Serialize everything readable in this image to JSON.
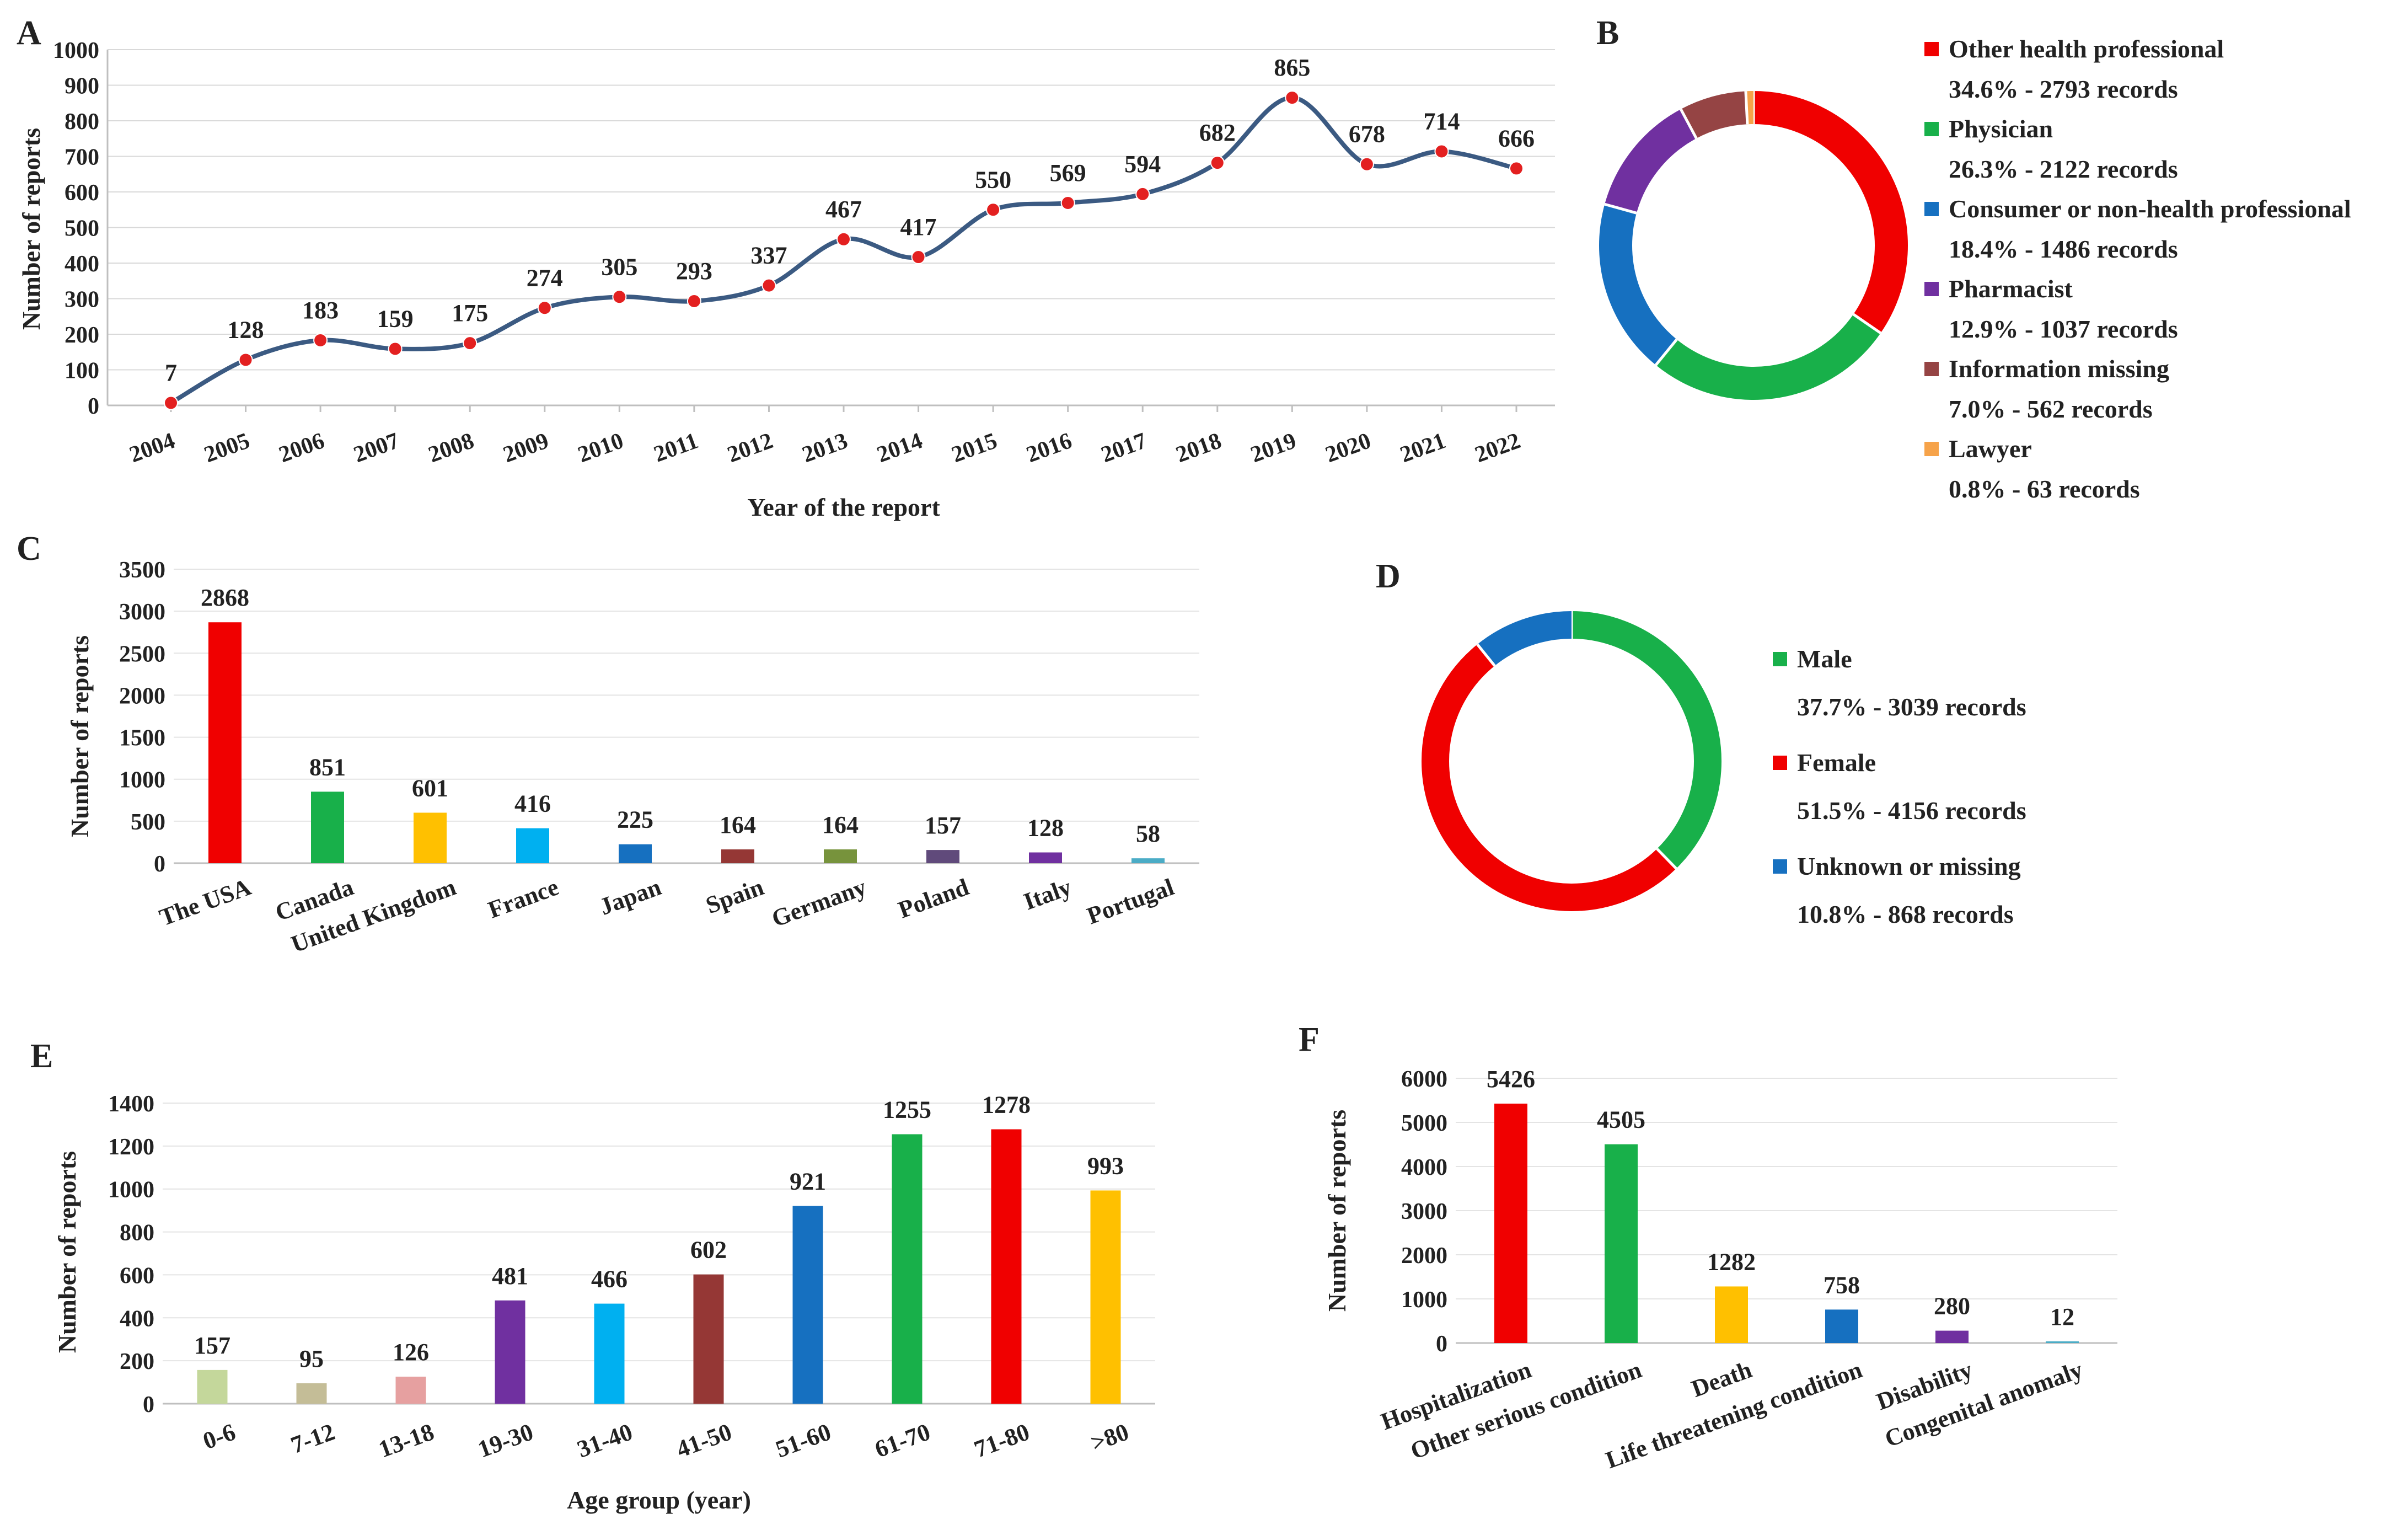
{
  "chart_data": [
    {
      "panel": "A",
      "type": "line",
      "categories": [
        "2004",
        "2005",
        "2006",
        "2007",
        "2008",
        "2009",
        "2010",
        "2011",
        "2012",
        "2013",
        "2014",
        "2015",
        "2016",
        "2017",
        "2018",
        "2019",
        "2020",
        "2021",
        "2022"
      ],
      "values": [
        7,
        128,
        183,
        159,
        175,
        274,
        305,
        293,
        337,
        467,
        417,
        550,
        569,
        594,
        682,
        865,
        678,
        714,
        666
      ],
      "xlabel": "Year of the report",
      "ylabel": "Number of reports",
      "ylim": [
        0,
        1000
      ],
      "yticks": [
        "0",
        "100",
        "200",
        "300",
        "400",
        "500",
        "600",
        "700",
        "800",
        "900",
        "1000"
      ],
      "colors": {
        "line": "#3b5a82",
        "marker": "#e32020"
      }
    },
    {
      "panel": "B",
      "type": "pie",
      "labels": [
        "Other health professional",
        "Physician",
        "Consumer or non-health professional",
        "Pharmacist",
        "Information missing",
        "Lawyer"
      ],
      "percents": [
        34.6,
        26.3,
        18.4,
        12.9,
        7.0,
        0.8
      ],
      "records": [
        2793,
        2122,
        1486,
        1037,
        562,
        63
      ],
      "details": [
        "34.6% - 2793 records",
        "26.3% - 2122 records",
        "18.4% - 1486 records",
        "12.9% - 1037 records",
        "7.0% - 562 records",
        "0.8% - 63 records"
      ],
      "colors": [
        "#f00000",
        "#18b04a",
        "#1670c0",
        "#7030a0",
        "#954444",
        "#f6a34a"
      ]
    },
    {
      "panel": "C",
      "type": "bar",
      "categories": [
        "The USA",
        "Canada",
        "United Kingdom",
        "France",
        "Japan",
        "Spain",
        "Germany",
        "Poland",
        "Italy",
        "Portugal"
      ],
      "values": [
        2868,
        851,
        601,
        416,
        225,
        164,
        164,
        157,
        128,
        58
      ],
      "ylabel": "Number of reports",
      "ylim": [
        0,
        3500
      ],
      "yticks": [
        "0",
        "500",
        "1000",
        "1500",
        "2000",
        "2500",
        "3000",
        "3500"
      ],
      "colors": [
        "#f00000",
        "#18b04a",
        "#ffc000",
        "#00b0f0",
        "#1670c0",
        "#953735",
        "#77933c",
        "#604a7b",
        "#7030a0",
        "#4bacc6"
      ]
    },
    {
      "panel": "D",
      "type": "pie",
      "labels": [
        "Male",
        "Female",
        "Unknown or missing"
      ],
      "percents": [
        37.7,
        51.5,
        10.8
      ],
      "records": [
        3039,
        4156,
        868
      ],
      "details": [
        "37.7% - 3039 records",
        "51.5% - 4156 records",
        "10.8% - 868 records"
      ],
      "colors": [
        "#18b04a",
        "#f00000",
        "#1670c0"
      ]
    },
    {
      "panel": "E",
      "type": "bar",
      "categories": [
        "0-6",
        "7-12",
        "13-18",
        "19-30",
        "31-40",
        "41-50",
        "51-60",
        "61-70",
        "71-80",
        ">80"
      ],
      "values": [
        157,
        95,
        126,
        481,
        466,
        602,
        921,
        1255,
        1278,
        993
      ],
      "xlabel": "Age group (year)",
      "ylabel": "Number of reports",
      "ylim": [
        0,
        1400
      ],
      "yticks": [
        "0",
        "200",
        "400",
        "600",
        "800",
        "1000",
        "1200",
        "1400"
      ],
      "colors": [
        "#c4d79b",
        "#c4bd97",
        "#e6a0a0",
        "#7030a0",
        "#00b0f0",
        "#953735",
        "#1670c0",
        "#18b04a",
        "#f00000",
        "#ffc000"
      ]
    },
    {
      "panel": "F",
      "type": "bar",
      "categories": [
        "Hospitalization",
        "Other serious condition",
        "Death",
        "Life threatening condition",
        "Disability",
        "Congenital anomaly"
      ],
      "values": [
        5426,
        4505,
        1282,
        758,
        280,
        12
      ],
      "ylabel": "Number of reports",
      "ylim": [
        0,
        6000
      ],
      "yticks": [
        "0",
        "1000",
        "2000",
        "3000",
        "4000",
        "5000",
        "6000"
      ],
      "colors": [
        "#f00000",
        "#18b04a",
        "#ffc000",
        "#1670c0",
        "#7030a0",
        "#4bacc6"
      ]
    }
  ]
}
